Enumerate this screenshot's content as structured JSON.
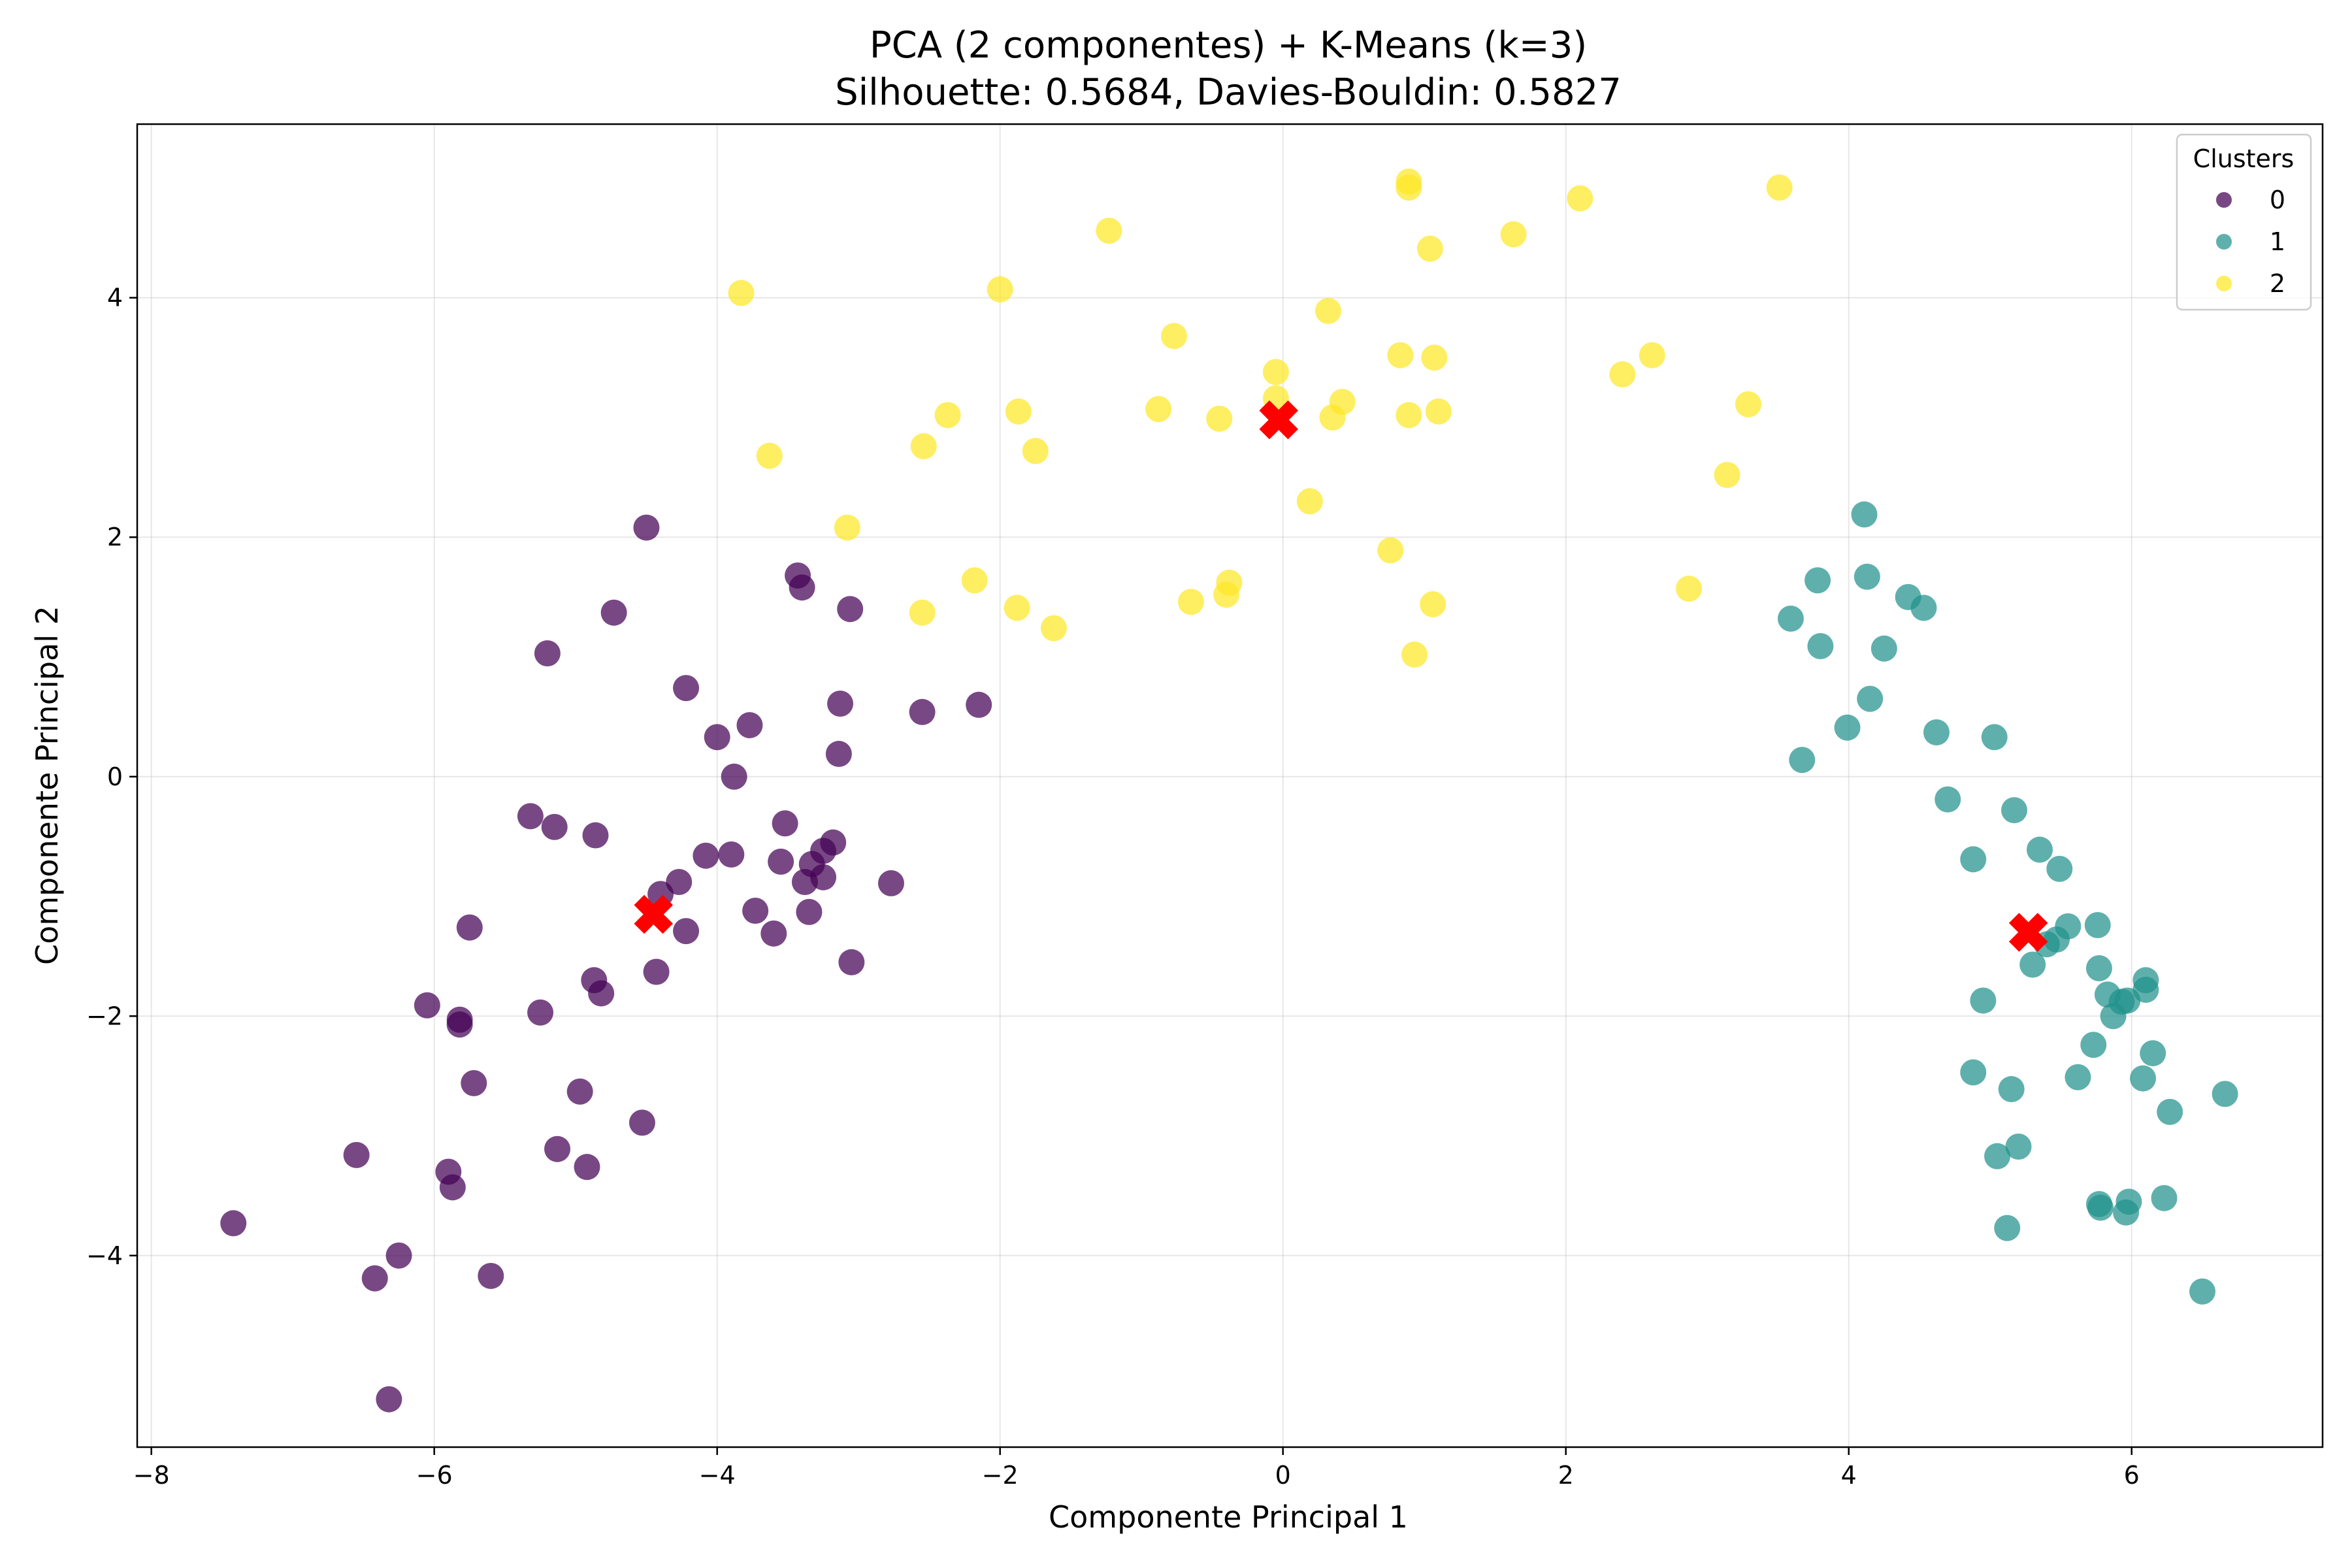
{
  "chart_data": {
    "type": "scatter",
    "title": "PCA (2 componentes) + K-Means (k=3)",
    "subtitle": "Silhouette: 0.5684, Davies-Bouldin: 0.5827",
    "xlabel": "Componente Principal 1",
    "ylabel": "Componente Principal 2",
    "xlim": [
      -8.1,
      7.35
    ],
    "ylim": [
      -5.6,
      5.45
    ],
    "xticks": [
      -8,
      -6,
      -4,
      -2,
      0,
      2,
      4,
      6
    ],
    "yticks": [
      -4,
      -2,
      0,
      2,
      4
    ],
    "xtick_labels": [
      "−8",
      "−6",
      "−4",
      "−2",
      "0",
      "2",
      "4",
      "6"
    ],
    "ytick_labels": [
      "−4",
      "−2",
      "0",
      "2",
      "4"
    ],
    "grid": true,
    "legend": {
      "title": "Clusters",
      "placement": "upper-right"
    },
    "colors": {
      "0": "#440154",
      "1": "#21918c",
      "2": "#fde725",
      "centroid": "#ff0000"
    },
    "series": [
      {
        "name": "0",
        "color": "#440154",
        "points": [
          [
            -7.42,
            -3.73
          ],
          [
            -6.55,
            -3.16
          ],
          [
            -6.42,
            -4.19
          ],
          [
            -6.25,
            -4.0
          ],
          [
            -6.32,
            -5.2
          ],
          [
            -6.05,
            -1.91
          ],
          [
            -5.9,
            -3.3
          ],
          [
            -5.87,
            -3.43
          ],
          [
            -5.82,
            -2.03
          ],
          [
            -5.82,
            -2.07
          ],
          [
            -5.75,
            -1.26
          ],
          [
            -5.72,
            -2.56
          ],
          [
            -5.6,
            -4.17
          ],
          [
            -5.32,
            -0.33
          ],
          [
            -5.25,
            -1.97
          ],
          [
            -5.2,
            1.03
          ],
          [
            -5.15,
            -0.42
          ],
          [
            -5.13,
            -3.11
          ],
          [
            -4.97,
            -2.63
          ],
          [
            -4.92,
            -3.26
          ],
          [
            -4.87,
            -1.7
          ],
          [
            -4.86,
            -0.49
          ],
          [
            -4.82,
            -1.81
          ],
          [
            -4.73,
            1.37
          ],
          [
            -4.53,
            -2.89
          ],
          [
            -4.5,
            2.08
          ],
          [
            -4.43,
            -1.63
          ],
          [
            -4.4,
            -0.98
          ],
          [
            -4.27,
            -0.88
          ],
          [
            -4.22,
            -1.29
          ],
          [
            -4.22,
            0.74
          ],
          [
            -4.08,
            -0.66
          ],
          [
            -4.0,
            0.33
          ],
          [
            -3.9,
            -0.65
          ],
          [
            -3.88,
            0.0
          ],
          [
            -3.77,
            0.43
          ],
          [
            -3.73,
            -1.12
          ],
          [
            -3.6,
            -1.31
          ],
          [
            -3.55,
            -0.71
          ],
          [
            -3.52,
            -0.39
          ],
          [
            -3.43,
            1.68
          ],
          [
            -3.4,
            1.58
          ],
          [
            -3.38,
            -0.88
          ],
          [
            -3.35,
            -1.13
          ],
          [
            -3.33,
            -0.73
          ],
          [
            -3.25,
            -0.84
          ],
          [
            -3.25,
            -0.62
          ],
          [
            -3.18,
            -0.55
          ],
          [
            -3.13,
            0.61
          ],
          [
            -3.14,
            0.19
          ],
          [
            -3.06,
            1.4
          ],
          [
            -3.05,
            -1.55
          ],
          [
            -2.77,
            -0.89
          ],
          [
            -2.55,
            0.54
          ],
          [
            -2.15,
            0.6
          ]
        ]
      },
      {
        "name": "1",
        "color": "#21918c",
        "points": [
          [
            3.59,
            1.32
          ],
          [
            3.67,
            0.14
          ],
          [
            3.78,
            1.64
          ],
          [
            3.8,
            1.09
          ],
          [
            3.99,
            0.41
          ],
          [
            4.11,
            2.19
          ],
          [
            4.13,
            1.67
          ],
          [
            4.15,
            0.65
          ],
          [
            4.25,
            1.07
          ],
          [
            4.42,
            1.5
          ],
          [
            4.53,
            1.41
          ],
          [
            4.62,
            0.37
          ],
          [
            4.7,
            -0.19
          ],
          [
            4.88,
            -0.69
          ],
          [
            4.88,
            -2.47
          ],
          [
            4.95,
            -1.87
          ],
          [
            5.03,
            0.33
          ],
          [
            5.05,
            -3.17
          ],
          [
            5.12,
            -3.77
          ],
          [
            5.15,
            -2.61
          ],
          [
            5.17,
            -0.28
          ],
          [
            5.2,
            -3.09
          ],
          [
            5.3,
            -1.57
          ],
          [
            5.35,
            -0.61
          ],
          [
            5.4,
            -1.4
          ],
          [
            5.47,
            -1.36
          ],
          [
            5.49,
            -0.77
          ],
          [
            5.55,
            -1.25
          ],
          [
            5.62,
            -2.51
          ],
          [
            5.73,
            -2.24
          ],
          [
            5.76,
            -1.24
          ],
          [
            5.77,
            -3.57
          ],
          [
            5.77,
            -1.6
          ],
          [
            5.78,
            -3.6
          ],
          [
            5.83,
            -1.82
          ],
          [
            5.87,
            -2.0
          ],
          [
            5.93,
            -1.88
          ],
          [
            5.97,
            -1.87
          ],
          [
            5.96,
            -3.64
          ],
          [
            5.98,
            -3.55
          ],
          [
            6.08,
            -2.52
          ],
          [
            6.1,
            -1.7
          ],
          [
            6.1,
            -1.78
          ],
          [
            6.15,
            -2.31
          ],
          [
            6.23,
            -3.52
          ],
          [
            6.27,
            -2.8
          ],
          [
            6.5,
            -4.3
          ],
          [
            6.66,
            -2.65
          ]
        ]
      },
      {
        "name": "2",
        "color": "#fde725",
        "points": [
          [
            -3.83,
            4.04
          ],
          [
            -3.63,
            2.68
          ],
          [
            -3.08,
            2.08
          ],
          [
            -2.54,
            2.76
          ],
          [
            -2.55,
            1.37
          ],
          [
            -2.37,
            3.02
          ],
          [
            -2.18,
            1.64
          ],
          [
            -2.0,
            4.07
          ],
          [
            -1.88,
            1.41
          ],
          [
            -1.87,
            3.05
          ],
          [
            -1.75,
            2.72
          ],
          [
            -1.62,
            1.24
          ],
          [
            -1.23,
            4.56
          ],
          [
            -0.88,
            3.07
          ],
          [
            -0.77,
            3.68
          ],
          [
            -0.65,
            1.46
          ],
          [
            -0.45,
            2.99
          ],
          [
            -0.4,
            1.52
          ],
          [
            -0.38,
            1.62
          ],
          [
            -0.05,
            3.38
          ],
          [
            -0.05,
            3.16
          ],
          [
            0.19,
            2.3
          ],
          [
            0.32,
            3.89
          ],
          [
            0.35,
            3.0
          ],
          [
            0.42,
            3.13
          ],
          [
            0.76,
            1.89
          ],
          [
            0.83,
            3.52
          ],
          [
            0.89,
            4.97
          ],
          [
            0.89,
            4.92
          ],
          [
            0.89,
            3.02
          ],
          [
            0.93,
            1.02
          ],
          [
            1.04,
            4.41
          ],
          [
            1.06,
            1.44
          ],
          [
            1.07,
            3.5
          ],
          [
            1.1,
            3.05
          ],
          [
            1.63,
            4.53
          ],
          [
            2.1,
            4.83
          ],
          [
            2.4,
            3.36
          ],
          [
            2.61,
            3.52
          ],
          [
            2.87,
            1.57
          ],
          [
            3.14,
            2.52
          ],
          [
            3.29,
            3.11
          ],
          [
            3.51,
            4.92
          ]
        ]
      }
    ],
    "centroids": [
      [
        -4.45,
        -1.15
      ],
      [
        5.27,
        -1.3
      ],
      [
        -0.03,
        2.98
      ]
    ]
  }
}
